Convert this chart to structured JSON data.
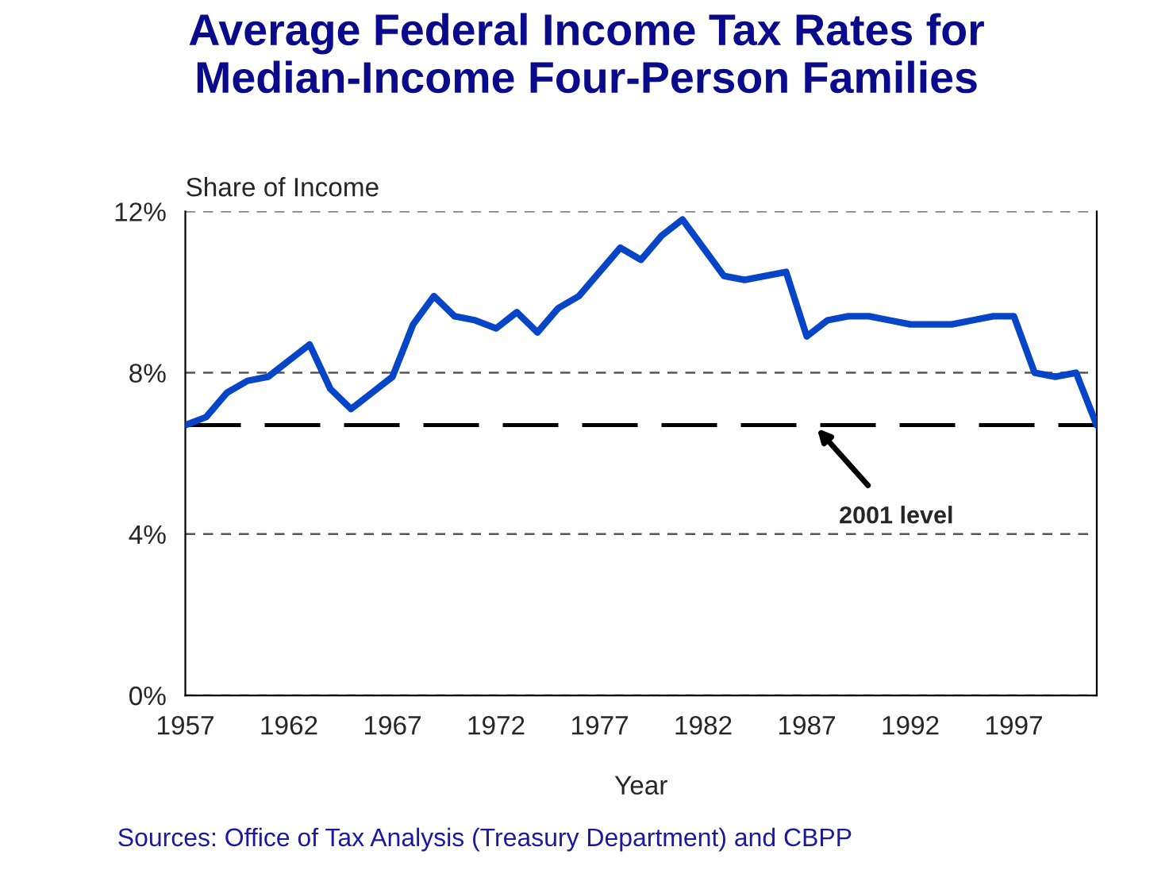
{
  "chart_data": {
    "type": "line",
    "title": "Average Federal Income Tax Rates for\nMedian-Income Four-Person Families",
    "xlabel": "Year",
    "ylabel": "Share of Income",
    "x": [
      1957,
      1958,
      1959,
      1960,
      1961,
      1962,
      1963,
      1964,
      1965,
      1966,
      1967,
      1968,
      1969,
      1970,
      1971,
      1972,
      1973,
      1974,
      1975,
      1976,
      1977,
      1978,
      1979,
      1980,
      1981,
      1982,
      1983,
      1984,
      1985,
      1986,
      1987,
      1988,
      1989,
      1990,
      1991,
      1992,
      1993,
      1994,
      1995,
      1996,
      1997,
      1998,
      1999,
      2000,
      2001
    ],
    "series": [
      {
        "color": "#0645c8",
        "values": [
          6.7,
          6.9,
          7.5,
          7.8,
          7.9,
          8.3,
          8.7,
          7.6,
          7.1,
          7.5,
          7.9,
          9.2,
          9.9,
          9.4,
          9.3,
          9.1,
          9.5,
          9.0,
          9.6,
          9.9,
          10.5,
          11.1,
          10.8,
          11.4,
          11.8,
          11.1,
          10.4,
          10.3,
          10.4,
          10.5,
          8.9,
          9.3,
          9.4,
          9.4,
          9.3,
          9.2,
          9.2,
          9.2,
          9.3,
          9.4,
          9.4,
          8.0,
          7.9,
          8.0,
          6.7
        ]
      }
    ],
    "xlim": [
      1957,
      2001
    ],
    "xticks": [
      1957,
      1962,
      1967,
      1972,
      1977,
      1982,
      1987,
      1992,
      1997
    ],
    "ylim": [
      0,
      12
    ],
    "yticks": [
      {
        "value": 0,
        "label": "0%"
      },
      {
        "value": 4,
        "label": "4%"
      },
      {
        "value": 8,
        "label": "8%"
      },
      {
        "value": 12,
        "label": "12%"
      }
    ],
    "grid": "y",
    "marker": "none",
    "line_style": "solid",
    "ref_lines": [
      {
        "axis": "y",
        "value": 6.7,
        "label": "2001 level",
        "color": "#000000",
        "line_style": "dashed"
      }
    ],
    "annotations": [
      "Sources: Office of Tax Analysis (Treasury Department) and CBPP"
    ]
  }
}
